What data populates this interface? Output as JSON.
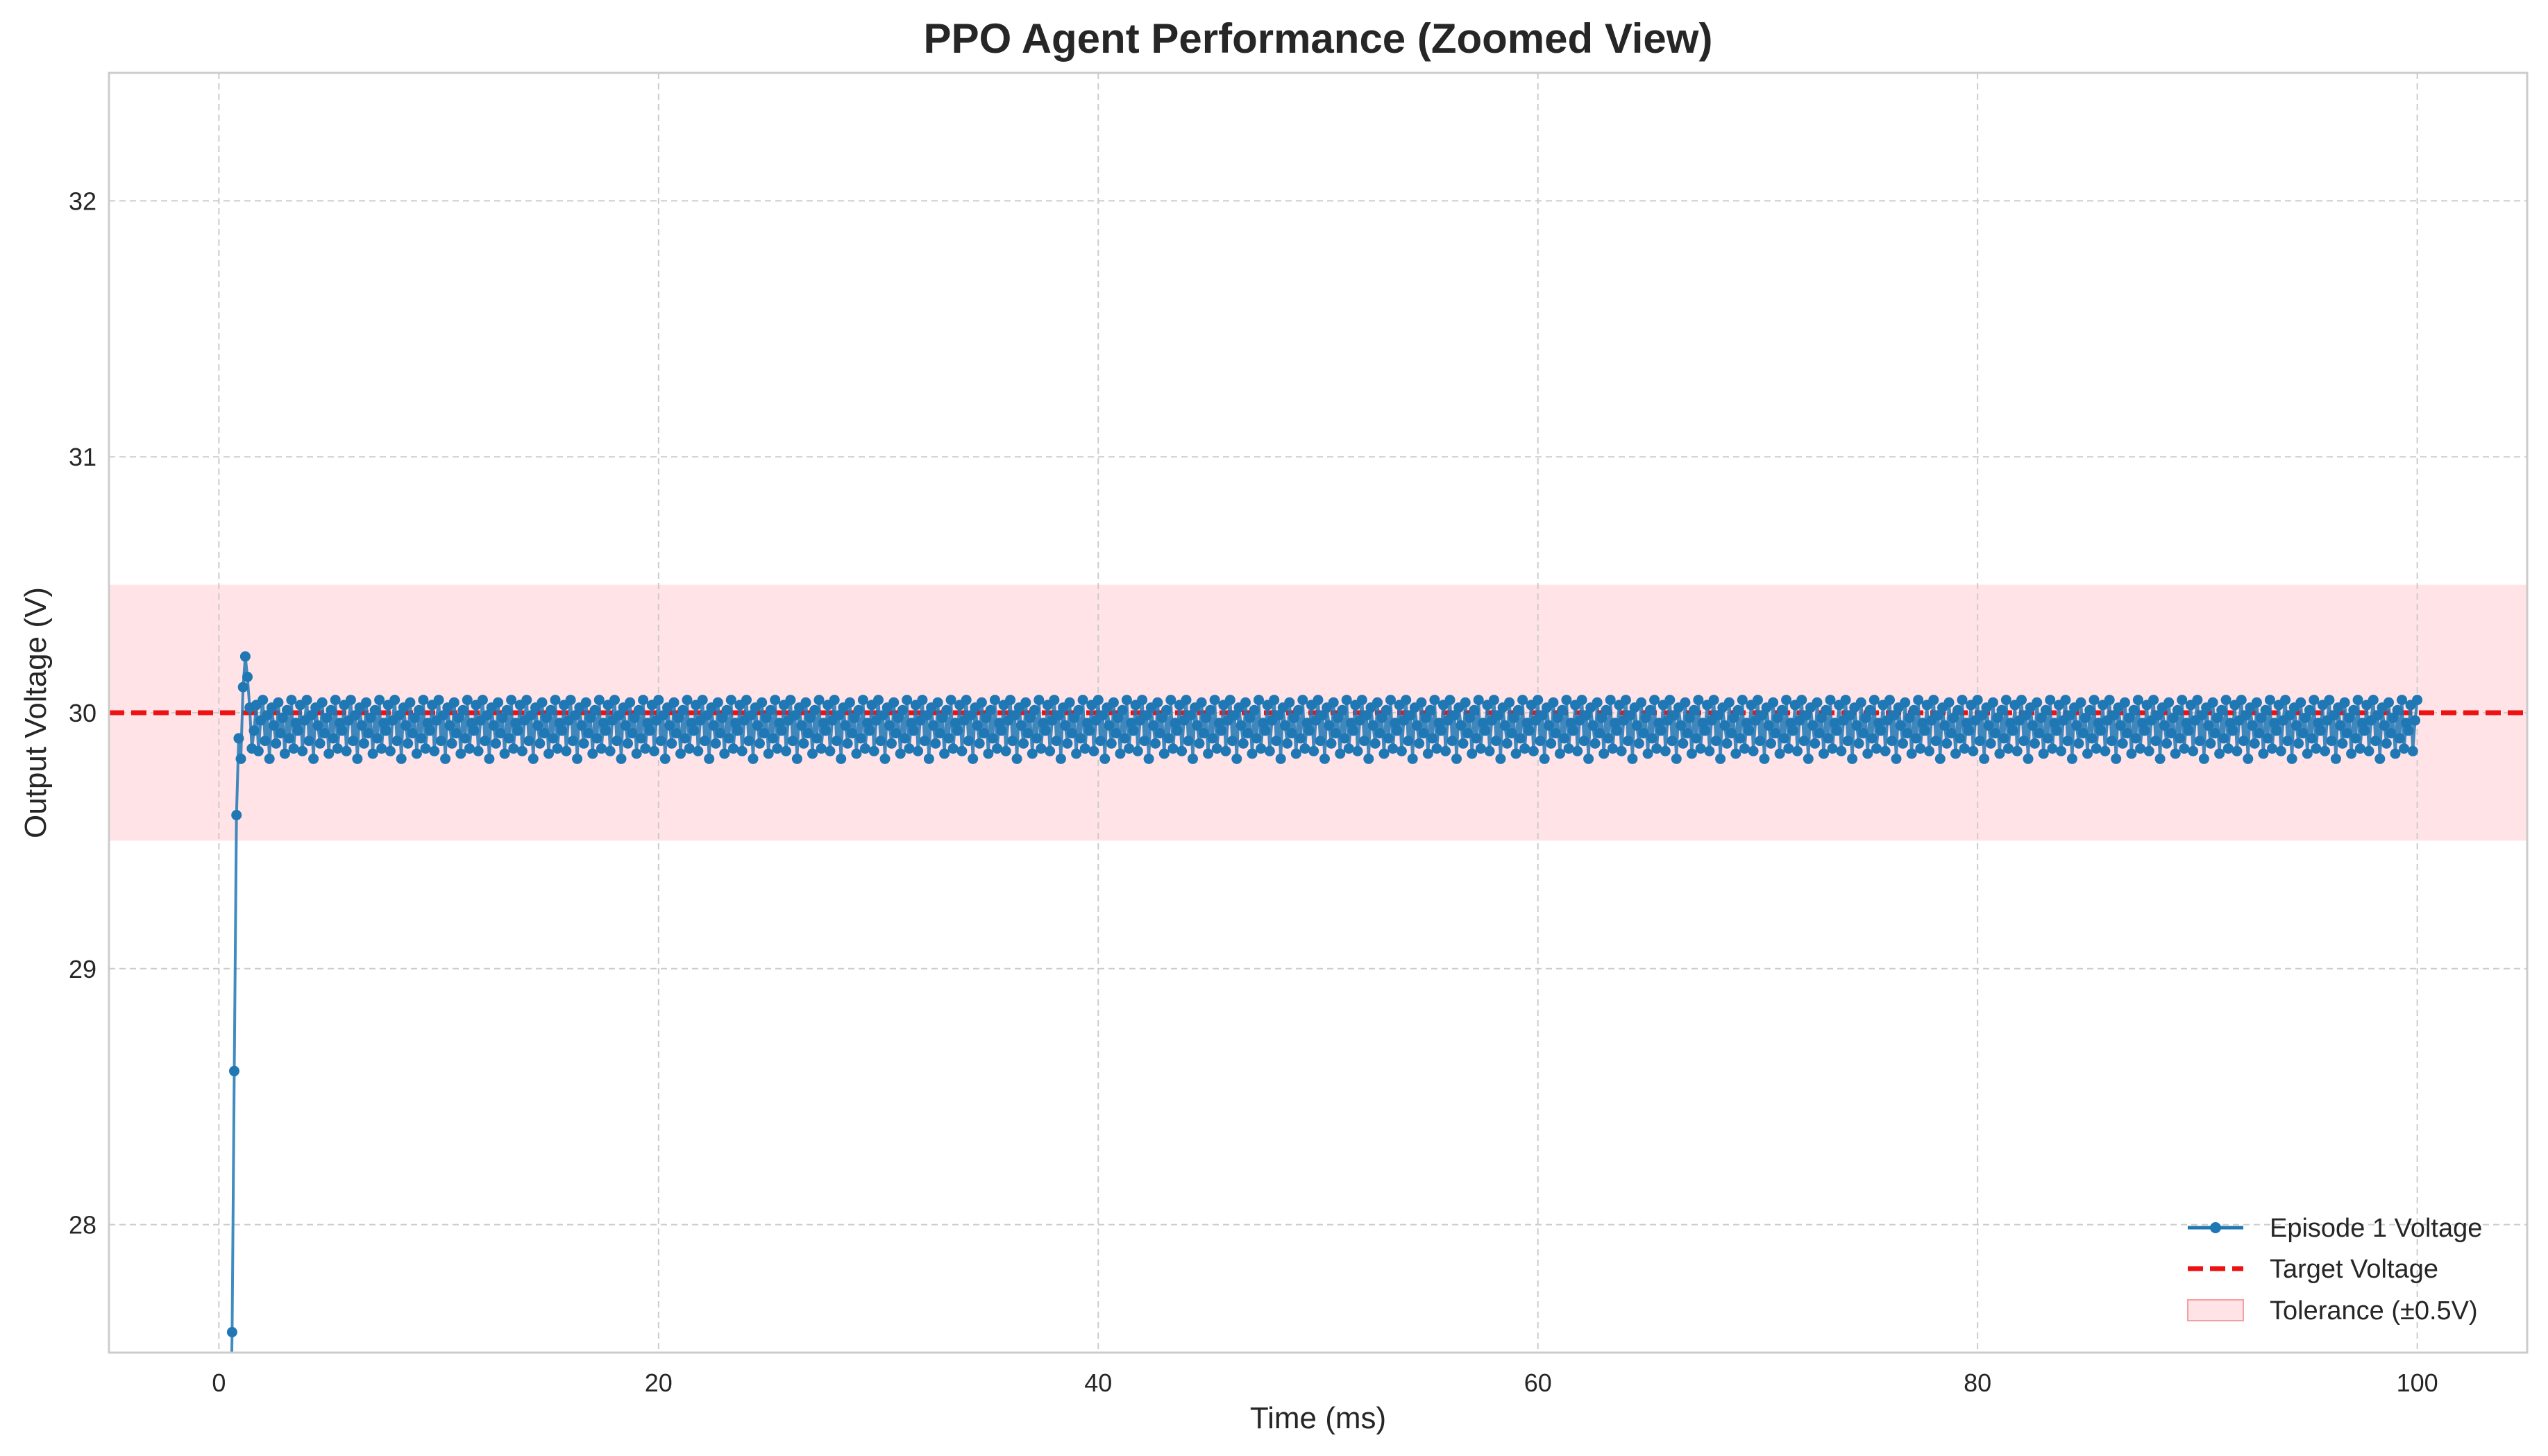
{
  "chart_data": {
    "type": "line",
    "title": "PPO Agent Performance (Zoomed View)",
    "xlabel": "Time (ms)",
    "ylabel": "Output Voltage (V)",
    "xlim": [
      -5,
      105
    ],
    "ylim": [
      27.5,
      32.5
    ],
    "xticks": [
      0,
      20,
      40,
      60,
      80,
      100
    ],
    "yticks": [
      28,
      29,
      30,
      31,
      32
    ],
    "grid": true,
    "legend_position": "bottom-right",
    "colors": {
      "series": "#1f77b4",
      "target": "#ee1111",
      "tolerance": "#ff9aa6"
    },
    "series": [
      {
        "name": "Episode 1 Voltage",
        "x_start": 0.5,
        "x_step": 0.1,
        "initial_values": [
          27.0,
          27.58,
          28.6,
          29.6,
          29.9,
          29.82,
          30.1,
          30.22,
          30.14,
          30.02,
          29.86
        ],
        "steady_values": [
          29.93,
          30.03,
          29.85,
          29.97,
          30.05,
          29.89,
          29.99,
          29.82,
          30.02,
          29.95,
          29.88,
          30.04,
          29.92,
          29.98,
          29.84,
          30.01,
          29.9,
          30.05,
          29.86,
          29.96
        ]
      },
      {
        "name": "Target Voltage",
        "value": 30
      },
      {
        "name": "Tolerance (±0.5V)",
        "range": [
          29.5,
          30.5
        ]
      }
    ]
  }
}
